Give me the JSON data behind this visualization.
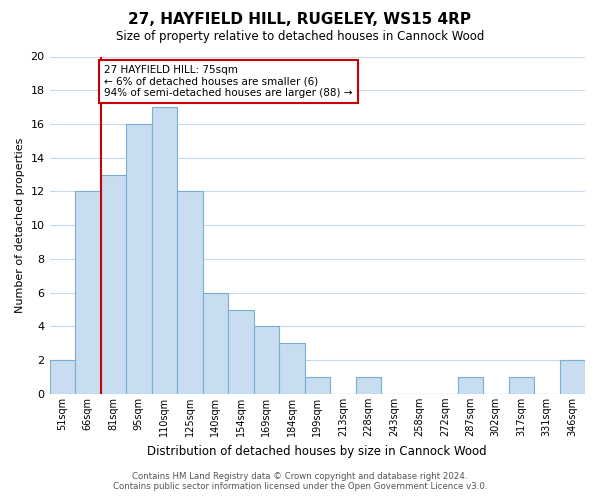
{
  "title": "27, HAYFIELD HILL, RUGELEY, WS15 4RP",
  "subtitle": "Size of property relative to detached houses in Cannock Wood",
  "xlabel": "Distribution of detached houses by size in Cannock Wood",
  "ylabel": "Number of detached properties",
  "bin_labels": [
    "51sqm",
    "66sqm",
    "81sqm",
    "95sqm",
    "110sqm",
    "125sqm",
    "140sqm",
    "154sqm",
    "169sqm",
    "184sqm",
    "199sqm",
    "213sqm",
    "228sqm",
    "243sqm",
    "258sqm",
    "272sqm",
    "287sqm",
    "302sqm",
    "317sqm",
    "331sqm",
    "346sqm"
  ],
  "bar_heights": [
    2,
    12,
    13,
    16,
    17,
    12,
    6,
    5,
    4,
    3,
    1,
    0,
    1,
    0,
    0,
    0,
    1,
    0,
    1,
    0,
    2
  ],
  "bar_color": "#c8ddef",
  "bar_edge_color": "#7aafd4",
  "marker_color": "#cc0000",
  "annotation_title": "27 HAYFIELD HILL: 75sqm",
  "annotation_line1": "← 6% of detached houses are smaller (6)",
  "annotation_line2": "94% of semi-detached houses are larger (88) →",
  "annotation_box_color": "#ffffff",
  "annotation_box_edge_color": "#cc0000",
  "ylim": [
    0,
    20
  ],
  "yticks": [
    0,
    2,
    4,
    6,
    8,
    10,
    12,
    14,
    16,
    18,
    20
  ],
  "footer_line1": "Contains HM Land Registry data © Crown copyright and database right 2024.",
  "footer_line2": "Contains public sector information licensed under the Open Government Licence v3.0.",
  "bg_color": "#ffffff",
  "grid_color": "#c8d8e8"
}
